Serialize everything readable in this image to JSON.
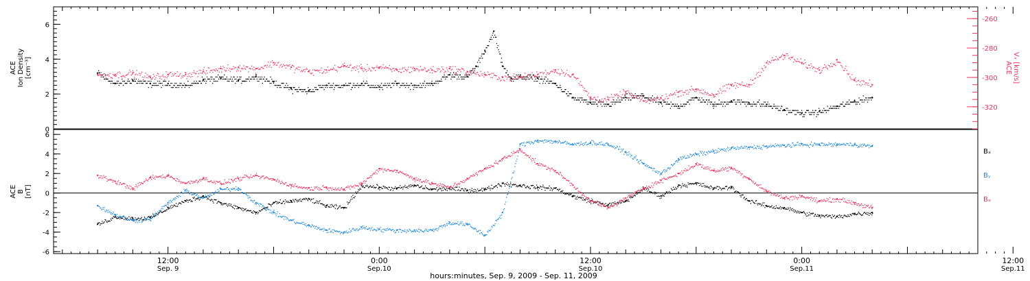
{
  "chart_data": [
    {
      "type": "scatter",
      "panel": "top",
      "ylabel_lines": [
        "ACE",
        "Ion Density",
        "[cm⁻³]"
      ],
      "ylim": [
        0,
        7
      ],
      "yticks": [
        0,
        2,
        4,
        6
      ],
      "y2label_lines": [
        "ACE",
        "Vₓ [km/s]"
      ],
      "y2lim": [
        -335,
        -252
      ],
      "y2ticks": [
        -260,
        -280,
        -300,
        -320
      ],
      "grid": false,
      "series": [
        {
          "name": "Ion Density",
          "axis": "left",
          "color": "#000000",
          "x": [
            0,
            2,
            4,
            6,
            8,
            10,
            12,
            14,
            16,
            18,
            20,
            22,
            24,
            26,
            28,
            30,
            32,
            34,
            36,
            38,
            40,
            42,
            43,
            44,
            45,
            46,
            47,
            48,
            50,
            52,
            54,
            56,
            58,
            60,
            62,
            64,
            66,
            68,
            70,
            72,
            74,
            76,
            78,
            80,
            82,
            84,
            86,
            88
          ],
          "y": [
            3.2,
            2.6,
            2.8,
            2.6,
            2.6,
            2.5,
            2.8,
            2.9,
            2.8,
            3.0,
            2.7,
            2.3,
            2.2,
            2.5,
            2.5,
            2.6,
            2.4,
            2.6,
            2.5,
            2.6,
            3.1,
            3.0,
            3.6,
            4.5,
            5.6,
            3.6,
            2.9,
            3.0,
            2.9,
            2.6,
            1.8,
            1.5,
            1.4,
            1.8,
            1.9,
            1.5,
            1.3,
            1.8,
            1.4,
            1.6,
            1.5,
            1.4,
            1.1,
            0.9,
            1.0,
            1.3,
            1.6,
            1.8
          ]
        },
        {
          "name": "Vx",
          "axis": "right",
          "color": "#e8335f",
          "x": [
            0,
            2,
            4,
            6,
            8,
            10,
            12,
            14,
            16,
            18,
            20,
            22,
            24,
            26,
            28,
            30,
            32,
            34,
            36,
            38,
            40,
            42,
            44,
            46,
            48,
            50,
            52,
            54,
            56,
            58,
            60,
            62,
            64,
            66,
            68,
            70,
            72,
            74,
            76,
            78,
            80,
            82,
            84,
            86,
            88
          ],
          "y": [
            -298,
            -298,
            -297,
            -300,
            -298,
            -298,
            -296,
            -294,
            -293,
            -294,
            -290,
            -293,
            -296,
            -295,
            -292,
            -294,
            -293,
            -295,
            -294,
            -295,
            -294,
            -296,
            -298,
            -300,
            -300,
            -298,
            -295,
            -298,
            -314,
            -315,
            -310,
            -316,
            -314,
            -310,
            -308,
            -312,
            -305,
            -305,
            -290,
            -285,
            -290,
            -295,
            -288,
            -302,
            -305
          ]
        }
      ]
    },
    {
      "type": "scatter",
      "panel": "bottom",
      "ylabel_lines": [
        "ACE",
        "B",
        "[nT]"
      ],
      "ylim": [
        -6.2,
        6.5
      ],
      "yticks": [
        -6,
        -4,
        -2,
        0,
        2,
        4,
        6
      ],
      "zero_line": true,
      "grid": false,
      "series": [
        {
          "name": "Bₓ",
          "color": "#000000",
          "x": [
            0,
            2,
            4,
            6,
            8,
            10,
            12,
            14,
            16,
            18,
            20,
            22,
            24,
            26,
            28,
            30,
            32,
            34,
            36,
            38,
            40,
            42,
            44,
            46,
            48,
            50,
            52,
            54,
            56,
            58,
            60,
            62,
            64,
            66,
            68,
            70,
            72,
            74,
            76,
            78,
            80,
            82,
            84,
            86,
            88
          ],
          "y": [
            -3.2,
            -2.4,
            -2.6,
            -2.5,
            -1.5,
            -0.8,
            -0.3,
            -1.0,
            -1.5,
            -2.0,
            -1.0,
            -0.8,
            -0.6,
            -1.3,
            -1.5,
            0.8,
            0.6,
            0.5,
            0.8,
            0.4,
            0.5,
            0.3,
            0.4,
            1.0,
            0.8,
            0.6,
            0.5,
            -0.3,
            -0.8,
            -1.2,
            -0.8,
            0.5,
            -0.3,
            0.8,
            1.0,
            0.5,
            0.6,
            -0.8,
            -1.3,
            -1.5,
            -2.0,
            -2.3,
            -2.4,
            -2.1,
            -2.0
          ]
        },
        {
          "name": "Bᵧ",
          "color": "#1e88d8",
          "x": [
            0,
            2,
            4,
            6,
            8,
            10,
            12,
            14,
            16,
            18,
            20,
            22,
            24,
            26,
            28,
            30,
            32,
            34,
            36,
            38,
            40,
            42,
            44,
            46,
            48,
            50,
            52,
            54,
            56,
            58,
            60,
            62,
            64,
            66,
            68,
            70,
            72,
            74,
            76,
            78,
            80,
            82,
            84,
            86,
            88
          ],
          "y": [
            -1.3,
            -2.2,
            -2.8,
            -2.6,
            -1.0,
            0.3,
            -0.5,
            0.4,
            0.5,
            -1.0,
            -2.0,
            -2.8,
            -3.3,
            -3.8,
            -4.0,
            -3.5,
            -3.7,
            -3.8,
            -3.8,
            -3.8,
            -3.0,
            -3.2,
            -4.3,
            -2.0,
            5.0,
            5.4,
            5.3,
            5.0,
            5.2,
            5.0,
            4.2,
            3.0,
            2.0,
            3.5,
            4.0,
            4.3,
            4.6,
            4.7,
            4.8,
            4.9,
            5.0,
            5.0,
            5.0,
            5.0,
            4.8
          ]
        },
        {
          "name": "Bₔ",
          "color": "#e8335f",
          "x": [
            0,
            2,
            4,
            6,
            8,
            10,
            12,
            14,
            16,
            18,
            20,
            22,
            24,
            26,
            28,
            30,
            32,
            34,
            36,
            38,
            40,
            42,
            44,
            46,
            48,
            50,
            52,
            54,
            56,
            58,
            60,
            62,
            64,
            66,
            68,
            70,
            72,
            74,
            76,
            78,
            80,
            82,
            84,
            86,
            88
          ],
          "y": [
            1.8,
            1.2,
            0.5,
            1.6,
            1.8,
            1.0,
            1.5,
            1.0,
            1.5,
            1.8,
            1.4,
            0.8,
            0.5,
            0.6,
            0.4,
            1.0,
            2.5,
            2.3,
            1.5,
            1.0,
            0.6,
            1.5,
            2.5,
            3.5,
            4.5,
            3.0,
            2.3,
            0.8,
            -0.8,
            -1.5,
            -0.5,
            0.5,
            1.3,
            2.0,
            3.0,
            2.3,
            2.6,
            1.5,
            0.2,
            -0.5,
            -0.3,
            -0.8,
            -0.6,
            -1.0,
            -1.5
          ]
        }
      ]
    }
  ],
  "legend": [
    {
      "label": "Bₓ",
      "color": "#000000"
    },
    {
      "label": "Bᵧ",
      "color": "#1e88d8"
    },
    {
      "label": "Bₔ",
      "color": "#e8335f"
    }
  ],
  "x_axis": {
    "xlim": [
      -5,
      100
    ],
    "major_ticks": [
      {
        "x": 8,
        "time": "12:00",
        "date": "Sep. 9"
      },
      {
        "x": 32,
        "time": "0:00",
        "date": "Sep.10"
      },
      {
        "x": 56,
        "time": "12:00",
        "date": "Sep.10"
      },
      {
        "x": 80,
        "time": "0:00",
        "date": "Sep.11"
      },
      {
        "x": 104,
        "time": "12:00",
        "date": "Sep.11"
      }
    ],
    "label": "hours:minutes, Sep.  9, 2009 - Sep. 11, 2009"
  }
}
